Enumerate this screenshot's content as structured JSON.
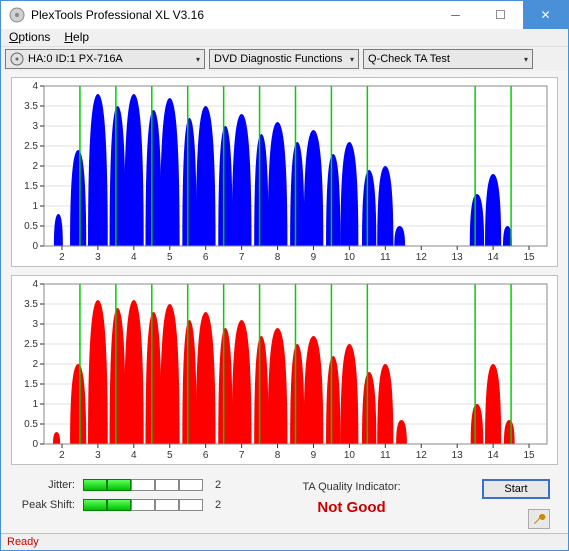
{
  "window": {
    "title": "PlexTools Professional XL V3.16"
  },
  "menu": {
    "options": "Options",
    "options_u": "O",
    "help": "Help",
    "help_u": "H"
  },
  "toolbar": {
    "device": "HA:0 ID:1   PX-716A",
    "func": "DVD Diagnostic Functions",
    "test": "Q-Check TA Test"
  },
  "chart_common": {
    "xlim": [
      1.5,
      15.5
    ],
    "ylim": [
      0,
      4
    ],
    "xticks": [
      2,
      3,
      4,
      5,
      6,
      7,
      8,
      9,
      10,
      11,
      12,
      13,
      14,
      15
    ],
    "yticks": [
      0,
      0.5,
      1,
      1.5,
      2,
      2.5,
      3,
      3.5,
      4
    ],
    "yticklabels": [
      "0",
      "0.5",
      "1",
      "1.5",
      "2",
      "2.5",
      "3",
      "3.5",
      "4"
    ],
    "plot_bg": "#ffffff",
    "grid_color": "#e0e0e0",
    "marker_lines_x": [
      2.5,
      3.5,
      4.5,
      5.5,
      6.5,
      7.5,
      8.5,
      9.5,
      10.5,
      13.5,
      14.5
    ],
    "marker_color": "#00d000"
  },
  "chart1": {
    "type": "filled-lobes",
    "fill_color": "#0000ff",
    "lobes": [
      {
        "xc": 1.9,
        "w": 0.25,
        "h": 0.8
      },
      {
        "xc": 2.45,
        "w": 0.45,
        "h": 2.4
      },
      {
        "xc": 3.0,
        "w": 0.55,
        "h": 3.8
      },
      {
        "xc": 3.55,
        "w": 0.45,
        "h": 3.5
      },
      {
        "xc": 4.0,
        "w": 0.55,
        "h": 3.8
      },
      {
        "xc": 4.55,
        "w": 0.45,
        "h": 3.4
      },
      {
        "xc": 5.0,
        "w": 0.55,
        "h": 3.7
      },
      {
        "xc": 5.55,
        "w": 0.4,
        "h": 3.2
      },
      {
        "xc": 6.0,
        "w": 0.55,
        "h": 3.5
      },
      {
        "xc": 6.55,
        "w": 0.4,
        "h": 3.0
      },
      {
        "xc": 7.0,
        "w": 0.55,
        "h": 3.3
      },
      {
        "xc": 7.55,
        "w": 0.4,
        "h": 2.8
      },
      {
        "xc": 8.0,
        "w": 0.55,
        "h": 3.1
      },
      {
        "xc": 8.55,
        "w": 0.4,
        "h": 2.6
      },
      {
        "xc": 9.0,
        "w": 0.55,
        "h": 2.9
      },
      {
        "xc": 9.55,
        "w": 0.4,
        "h": 2.3
      },
      {
        "xc": 10.0,
        "w": 0.5,
        "h": 2.6
      },
      {
        "xc": 10.55,
        "w": 0.4,
        "h": 1.9
      },
      {
        "xc": 11.0,
        "w": 0.45,
        "h": 2.0
      },
      {
        "xc": 11.4,
        "w": 0.3,
        "h": 0.5
      },
      {
        "xc": 13.55,
        "w": 0.4,
        "h": 1.3
      },
      {
        "xc": 14.0,
        "w": 0.45,
        "h": 1.8
      },
      {
        "xc": 14.4,
        "w": 0.25,
        "h": 0.5
      }
    ]
  },
  "chart2": {
    "type": "filled-lobes",
    "fill_color": "#ff0000",
    "lobes": [
      {
        "xc": 1.85,
        "w": 0.2,
        "h": 0.3
      },
      {
        "xc": 2.45,
        "w": 0.45,
        "h": 2.0
      },
      {
        "xc": 3.0,
        "w": 0.55,
        "h": 3.6
      },
      {
        "xc": 3.55,
        "w": 0.45,
        "h": 3.4
      },
      {
        "xc": 4.0,
        "w": 0.55,
        "h": 3.6
      },
      {
        "xc": 4.55,
        "w": 0.45,
        "h": 3.3
      },
      {
        "xc": 5.0,
        "w": 0.55,
        "h": 3.5
      },
      {
        "xc": 5.55,
        "w": 0.4,
        "h": 3.1
      },
      {
        "xc": 6.0,
        "w": 0.55,
        "h": 3.3
      },
      {
        "xc": 6.55,
        "w": 0.4,
        "h": 2.9
      },
      {
        "xc": 7.0,
        "w": 0.55,
        "h": 3.1
      },
      {
        "xc": 7.55,
        "w": 0.4,
        "h": 2.7
      },
      {
        "xc": 8.0,
        "w": 0.55,
        "h": 2.9
      },
      {
        "xc": 8.55,
        "w": 0.4,
        "h": 2.5
      },
      {
        "xc": 9.0,
        "w": 0.55,
        "h": 2.7
      },
      {
        "xc": 9.55,
        "w": 0.4,
        "h": 2.2
      },
      {
        "xc": 10.0,
        "w": 0.5,
        "h": 2.5
      },
      {
        "xc": 10.55,
        "w": 0.4,
        "h": 1.8
      },
      {
        "xc": 11.0,
        "w": 0.45,
        "h": 2.0
      },
      {
        "xc": 11.45,
        "w": 0.3,
        "h": 0.6
      },
      {
        "xc": 13.55,
        "w": 0.35,
        "h": 1.0
      },
      {
        "xc": 14.0,
        "w": 0.45,
        "h": 2.0
      },
      {
        "xc": 14.45,
        "w": 0.3,
        "h": 0.6
      }
    ]
  },
  "metrics": {
    "jitter_label": "Jitter:",
    "jitter_filled": 2,
    "jitter_total": 5,
    "jitter_val": "2",
    "peak_label": "Peak Shift:",
    "peak_filled": 2,
    "peak_total": 5,
    "peak_val": "2"
  },
  "quality": {
    "label": "TA Quality Indicator:",
    "value": "Not Good",
    "color": "#cc0000"
  },
  "buttons": {
    "start": "Start"
  },
  "status": {
    "text": "Ready"
  }
}
